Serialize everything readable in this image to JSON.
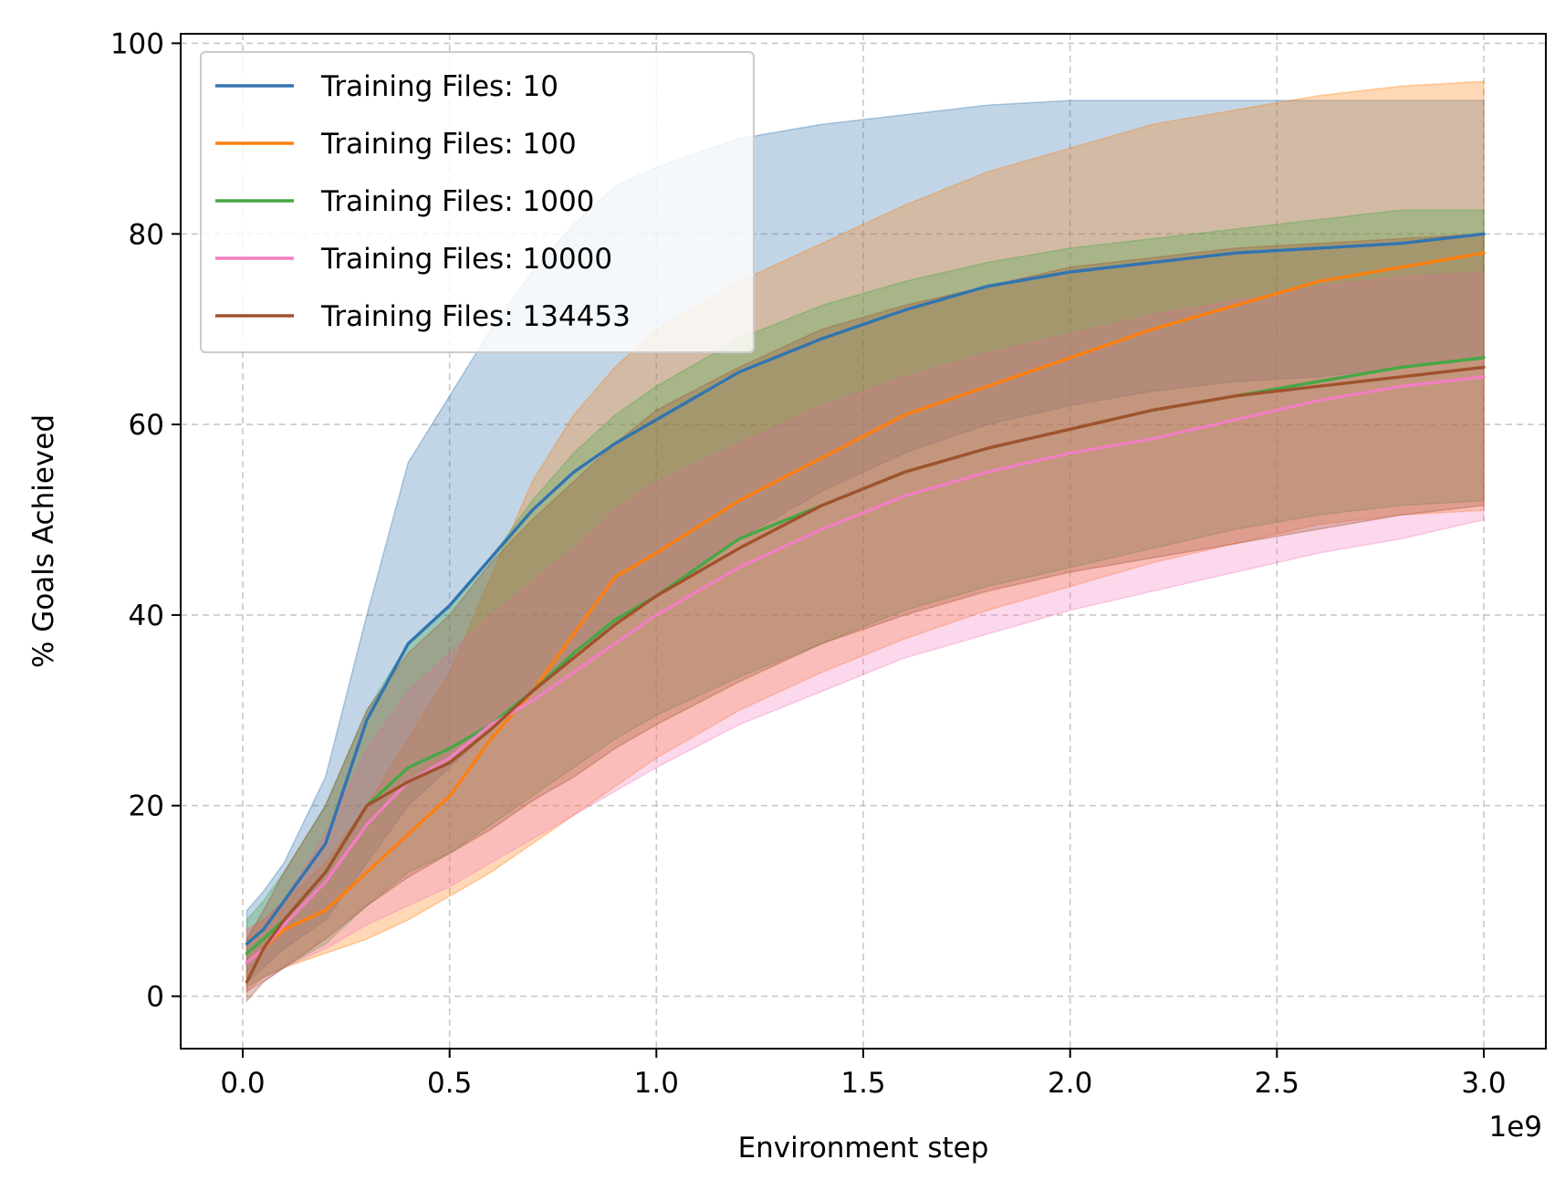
{
  "chart_data": {
    "type": "line",
    "title": "",
    "xlabel": "Environment step",
    "ylabel": "% Goals Achieved",
    "x_offset_text": "1e9",
    "xlim": [
      -0.15,
      3.15
    ],
    "ylim": [
      -5.5,
      101
    ],
    "xticks": [
      0.0,
      0.5,
      1.0,
      1.5,
      2.0,
      2.5,
      3.0
    ],
    "xtick_labels": [
      "0.0",
      "0.5",
      "1.0",
      "1.5",
      "2.0",
      "2.5",
      "3.0"
    ],
    "yticks": [
      0,
      20,
      40,
      60,
      80,
      100
    ],
    "ytick_labels": [
      "0",
      "20",
      "40",
      "60",
      "80",
      "100"
    ],
    "grid": true,
    "legend_position": "top-left",
    "x": [
      0.01,
      0.05,
      0.1,
      0.2,
      0.3,
      0.4,
      0.5,
      0.6,
      0.7,
      0.8,
      0.9,
      1.0,
      1.2,
      1.4,
      1.6,
      1.8,
      2.0,
      2.2,
      2.4,
      2.6,
      2.8,
      3.0
    ],
    "series": [
      {
        "name": "Training Files: 10",
        "label": "Training Files: 10",
        "color": "#3274b0",
        "mean": [
          5.5,
          7,
          10,
          16,
          29,
          37,
          41,
          46,
          51,
          55,
          58,
          60.5,
          65.5,
          69,
          72,
          74.5,
          76,
          77,
          78,
          78.5,
          79,
          80
        ],
        "upper": [
          9,
          11,
          14,
          23,
          40,
          56,
          63,
          70,
          76,
          81,
          85,
          87,
          90,
          91.5,
          92.5,
          93.5,
          94,
          94,
          94,
          94,
          94,
          94
        ],
        "lower": [
          1.5,
          3,
          5,
          8,
          14,
          20,
          24,
          28,
          32,
          36,
          39,
          42,
          48,
          53,
          57,
          60,
          62,
          63.5,
          64.5,
          65,
          66,
          67
        ]
      },
      {
        "name": "Training Files: 100",
        "label": "Training Files: 100",
        "color": "#ff7f0e",
        "mean": [
          3.5,
          5,
          7,
          9,
          13,
          17,
          21,
          27,
          32,
          38,
          44,
          46.5,
          52,
          56.5,
          61,
          64,
          67,
          70,
          72.5,
          75,
          76.5,
          78
        ],
        "upper": [
          7,
          8,
          10,
          14,
          20,
          27,
          34,
          44,
          54,
          61,
          66,
          70,
          75,
          79,
          83,
          86.5,
          89,
          91.5,
          93,
          94.5,
          95.5,
          96
        ],
        "lower": [
          0.5,
          2,
          3,
          4.5,
          6,
          8,
          10.5,
          13,
          16,
          19,
          22,
          25,
          30,
          34,
          37.5,
          40.5,
          43,
          45.5,
          47.5,
          49.5,
          50.5,
          51
        ]
      },
      {
        "name": "Training Files: 1000",
        "label": "Training Files: 1000",
        "color": "#45a845",
        "mean": [
          4.5,
          6,
          8,
          13,
          20,
          24,
          26,
          28.5,
          32,
          36,
          39.5,
          42,
          48,
          51.5,
          55,
          57.5,
          59.5,
          61.5,
          63,
          64.5,
          66,
          67
        ],
        "upper": [
          8,
          10,
          13,
          20,
          30,
          37,
          41,
          46,
          52,
          57,
          61,
          64,
          69,
          72.5,
          75,
          77,
          78.5,
          79.5,
          80.5,
          81.5,
          82.5,
          82.5
        ],
        "lower": [
          1,
          2,
          3,
          5.5,
          9.5,
          13,
          15,
          18,
          21,
          24,
          27,
          29.5,
          33.5,
          37,
          40.5,
          43,
          45,
          47,
          49,
          50.5,
          51.5,
          52
        ]
      },
      {
        "name": "Training Files: 10000",
        "label": "Training Files: 10000",
        "color": "#f17fc1",
        "mean": [
          3.5,
          5,
          7.5,
          12,
          18,
          22.5,
          25,
          28.5,
          31,
          34,
          37,
          40,
          45,
          49,
          52.5,
          55,
          57,
          58.5,
          60.5,
          62.5,
          64,
          65
        ],
        "upper": [
          7,
          8,
          10,
          17,
          26,
          32,
          36,
          40,
          43.5,
          47,
          51,
          54,
          58,
          62,
          65,
          67.5,
          69.5,
          71.5,
          73,
          74.5,
          75.5,
          76
        ],
        "lower": [
          0.5,
          1.5,
          3,
          5,
          7.5,
          9.5,
          11.5,
          14,
          16.5,
          19,
          21.5,
          24,
          28.5,
          32,
          35.5,
          38,
          40.5,
          42.5,
          44.5,
          46.5,
          48,
          50
        ]
      },
      {
        "name": "Training Files: 134453",
        "label": "Training Files: 134453",
        "color": "#a0522d",
        "mean": [
          1.5,
          5,
          8,
          13,
          20,
          22.5,
          24.5,
          28,
          32,
          35.5,
          39,
          42,
          47,
          51.5,
          55,
          57.5,
          59.5,
          61.5,
          63,
          64,
          65,
          66
        ],
        "upper": [
          6,
          9,
          13,
          20,
          30,
          36,
          40,
          45.5,
          50,
          54,
          58,
          61.5,
          66,
          70,
          72.5,
          74.5,
          76.5,
          77.5,
          78.5,
          79,
          79.5,
          80
        ],
        "lower": [
          -0.5,
          1.5,
          3,
          6,
          9.5,
          12.5,
          15,
          17.5,
          20.5,
          23,
          26,
          28.5,
          33,
          37,
          40,
          42.5,
          44.5,
          46,
          47.5,
          49,
          50.5,
          51.5
        ]
      }
    ]
  }
}
